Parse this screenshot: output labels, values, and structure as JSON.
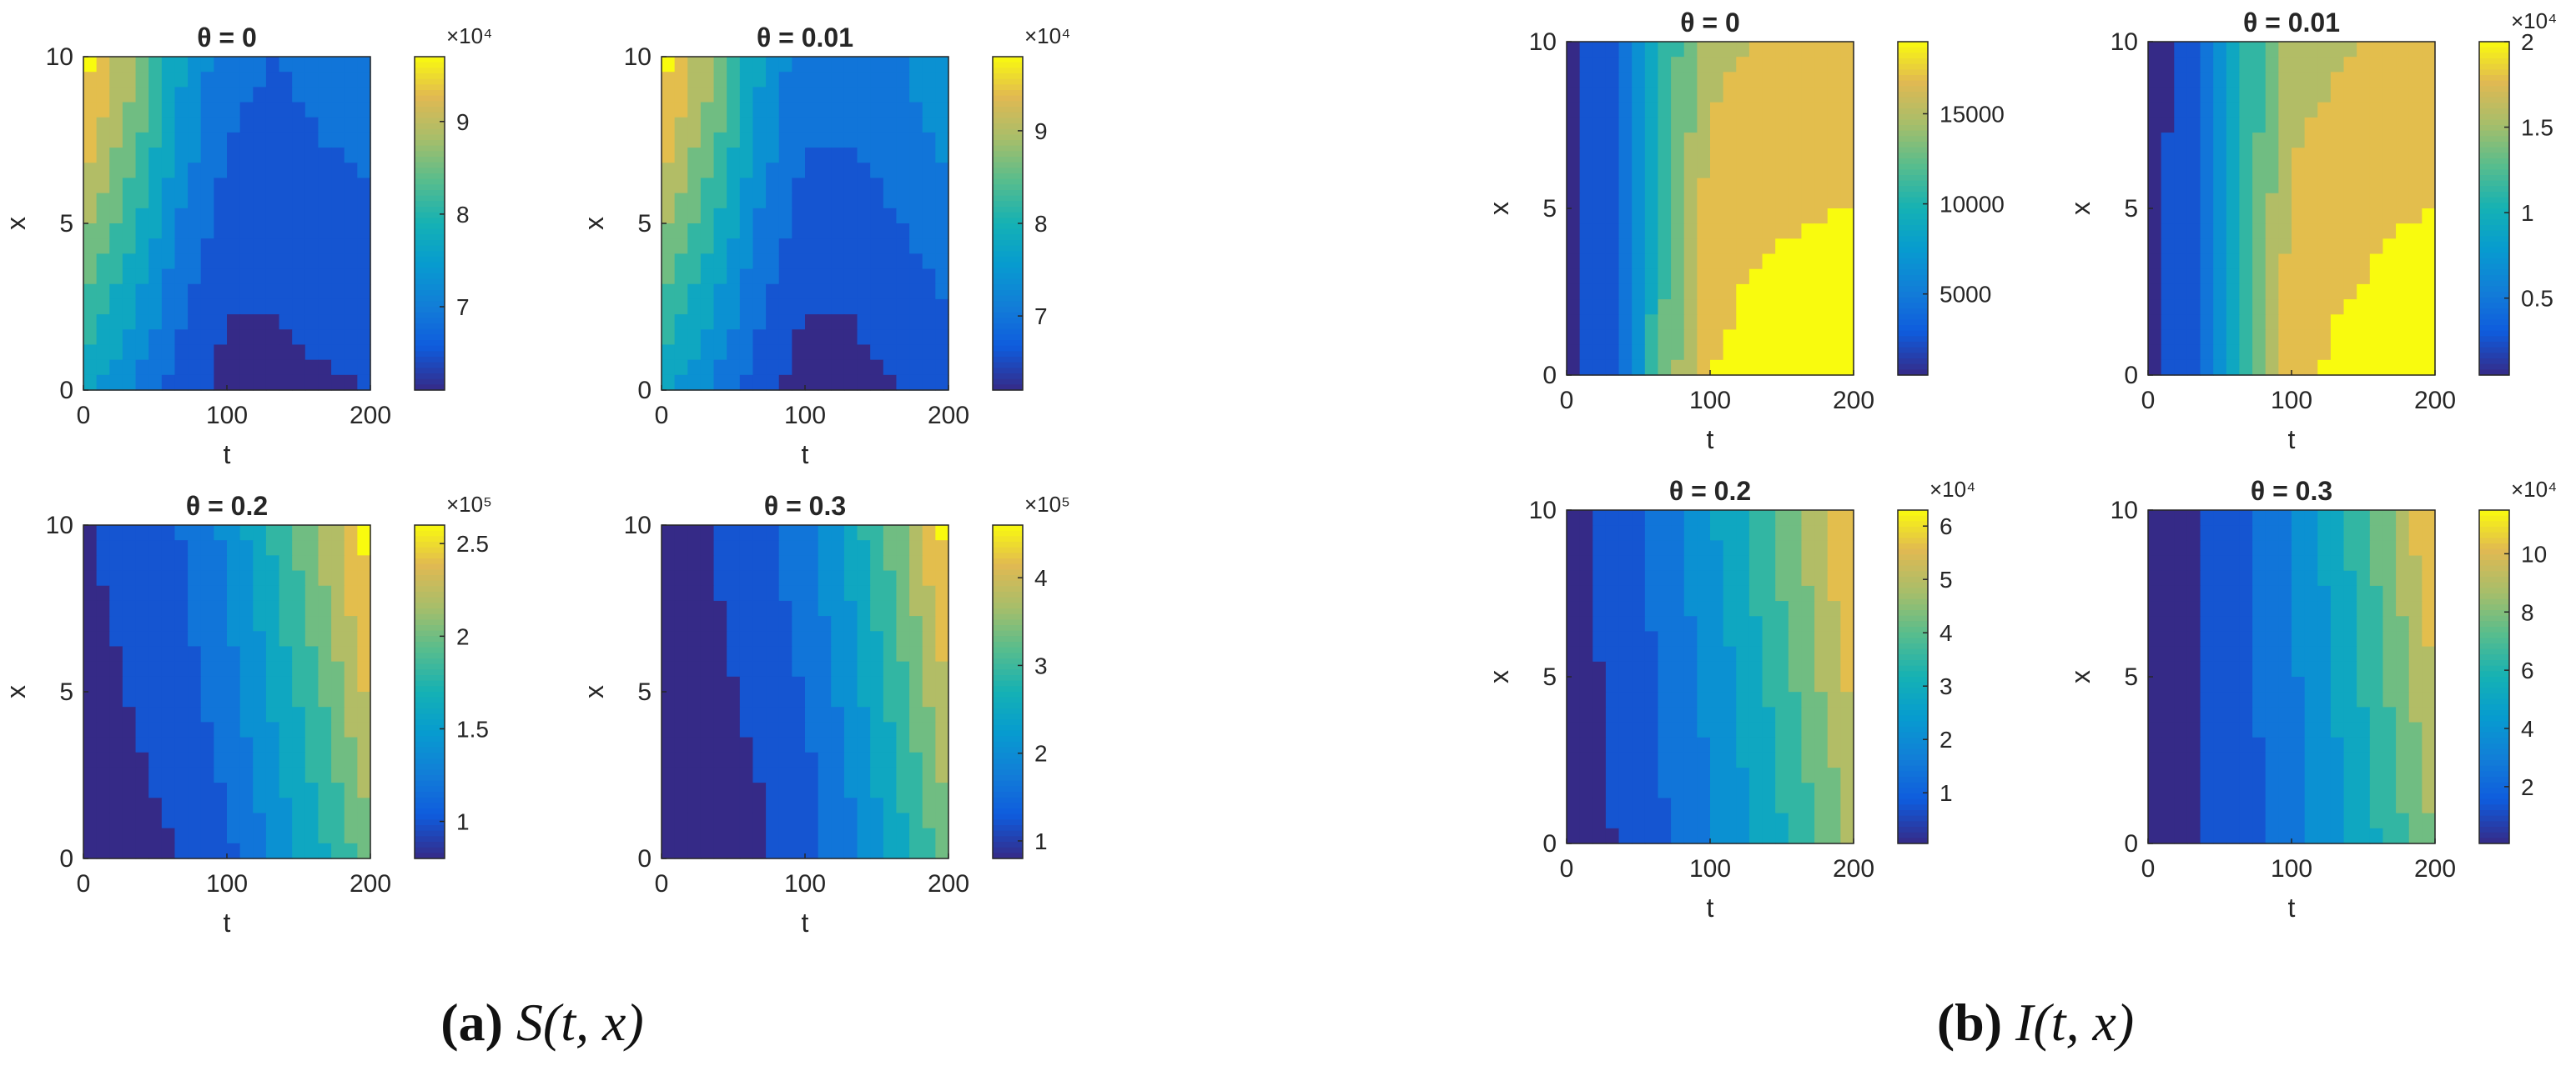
{
  "captions": [
    {
      "letter": "(a)",
      "label": "S(t, x)"
    },
    {
      "letter": "(b)",
      "label": "I(t, x)"
    }
  ],
  "chart_data": [
    {
      "type": "heatmap",
      "title": "θ = 0",
      "xlabel": "t",
      "ylabel": "x",
      "xlim": [
        0,
        200
      ],
      "ylim": [
        0,
        10
      ],
      "xticks": [
        "0",
        "100",
        "200"
      ],
      "yticks": [
        "0",
        "5",
        "10"
      ],
      "colorbar": {
        "range": [
          61000,
          97000
        ],
        "ticks": [
          7,
          8,
          9
        ],
        "tick_labels": [
          "7",
          "8",
          "9"
        ],
        "multiplier": "×10⁴"
      },
      "grid": [
        [
          97000,
          88000,
          76000,
          68000,
          67000,
          68000,
          70000
        ],
        [
          93000,
          85000,
          74000,
          67000,
          66000,
          67000,
          68000
        ],
        [
          88000,
          80000,
          71000,
          65000,
          64000,
          65000,
          66000
        ],
        [
          82000,
          76000,
          68000,
          63000,
          63000,
          64000,
          65000
        ],
        [
          76000,
          71000,
          65000,
          62000,
          62000,
          62500,
          63000
        ]
      ]
    },
    {
      "type": "heatmap",
      "title": "θ = 0.01",
      "xlabel": "t",
      "ylabel": "x",
      "xlim": [
        0,
        200
      ],
      "ylim": [
        0,
        10
      ],
      "xticks": [
        "0",
        "100",
        "200"
      ],
      "yticks": [
        "0",
        "5",
        "10"
      ],
      "colorbar": {
        "range": [
          62000,
          98000
        ],
        "ticks": [
          7,
          8,
          9
        ],
        "tick_labels": [
          "7",
          "8",
          "9"
        ],
        "multiplier": "×10⁴"
      },
      "grid": [
        [
          98000,
          89000,
          77000,
          69000,
          69000,
          72000,
          75000
        ],
        [
          94000,
          86000,
          75000,
          68000,
          68000,
          70000,
          73000
        ],
        [
          89000,
          81000,
          72000,
          66000,
          66000,
          68000,
          70000
        ],
        [
          83000,
          77000,
          69000,
          64000,
          64000,
          66000,
          68000
        ],
        [
          77000,
          72000,
          66000,
          62000,
          63000,
          64000,
          66000
        ]
      ]
    },
    {
      "type": "heatmap",
      "title": "θ = 0.2",
      "xlabel": "t",
      "ylabel": "x",
      "xlim": [
        0,
        200
      ],
      "ylim": [
        0,
        10
      ],
      "xticks": [
        "0",
        "100",
        "200"
      ],
      "yticks": [
        "0",
        "5",
        "10"
      ],
      "colorbar": {
        "range": [
          80000,
          260000
        ],
        "ticks": [
          1,
          1.5,
          2,
          2.5
        ],
        "tick_labels": [
          "1",
          "1.5",
          "2",
          "2.5"
        ],
        "multiplier": "×10⁵"
      },
      "grid": [
        [
          88000,
          99000,
          110000,
          135000,
          175000,
          215000,
          260000
        ],
        [
          85000,
          95000,
          105000,
          128000,
          165000,
          205000,
          250000
        ],
        [
          82000,
          91000,
          100000,
          120000,
          155000,
          190000,
          235000
        ],
        [
          81000,
          86000,
          96000,
          113000,
          145000,
          178000,
          220000
        ],
        [
          80000,
          82000,
          90000,
          105000,
          135000,
          165000,
          205000
        ]
      ]
    },
    {
      "type": "heatmap",
      "title": "θ = 0.3",
      "xlabel": "t",
      "ylabel": "x",
      "xlim": [
        0,
        200
      ],
      "ylim": [
        0,
        10
      ],
      "xticks": [
        "0",
        "100",
        "200"
      ],
      "yticks": [
        "0",
        "5",
        "10"
      ],
      "colorbar": {
        "range": [
          80000,
          460000
        ],
        "ticks": [
          1,
          2,
          3,
          4
        ],
        "tick_labels": [
          "1",
          "2",
          "3",
          "4"
        ],
        "multiplier": "×10⁵"
      },
      "grid": [
        [
          88000,
          102000,
          125000,
          175000,
          250000,
          350000,
          460000
        ],
        [
          85000,
          96000,
          116000,
          160000,
          230000,
          325000,
          430000
        ],
        [
          83000,
          92000,
          108000,
          145000,
          210000,
          300000,
          400000
        ],
        [
          81000,
          88000,
          100000,
          132000,
          192000,
          275000,
          370000
        ],
        [
          80000,
          84000,
          94000,
          120000,
          175000,
          250000,
          340000
        ]
      ]
    },
    {
      "type": "heatmap",
      "title": "θ = 0",
      "xlabel": "t",
      "ylabel": "x",
      "xlim": [
        0,
        200
      ],
      "ylim": [
        0,
        10
      ],
      "xticks": [
        "0",
        "100",
        "200"
      ],
      "yticks": [
        "0",
        "5",
        "10"
      ],
      "colorbar": {
        "range": [
          500,
          19000
        ],
        "ticks": [
          5000,
          10000,
          15000
        ],
        "tick_labels": [
          "5000",
          "10000",
          "15000"
        ],
        "multiplier": ""
      },
      "grid": [
        [
          600,
          3000,
          10000,
          15500,
          16000,
          16500,
          16500
        ],
        [
          600,
          3000,
          10500,
          16000,
          16800,
          17200,
          17500
        ],
        [
          600,
          3200,
          11000,
          17000,
          17500,
          17800,
          18000
        ],
        [
          600,
          3300,
          11500,
          17500,
          18200,
          18600,
          18800
        ],
        [
          600,
          3400,
          12000,
          18000,
          18700,
          19000,
          19000
        ]
      ]
    },
    {
      "type": "heatmap",
      "title": "θ = 0.01",
      "xlabel": "t",
      "ylabel": "x",
      "xlim": [
        0,
        200
      ],
      "ylim": [
        0,
        10
      ],
      "xticks": [
        "0",
        "100",
        "200"
      ],
      "yticks": [
        "0",
        "5",
        "10"
      ],
      "colorbar": {
        "range": [
          500,
          20000
        ],
        "ticks": [
          0.5,
          1,
          1.5,
          2
        ],
        "tick_labels": [
          "0.5",
          "1",
          "1.5",
          "2"
        ],
        "multiplier": "×10⁴"
      },
      "grid": [
        [
          600,
          3000,
          10000,
          16000,
          16500,
          17000,
          17500
        ],
        [
          600,
          3000,
          10500,
          16500,
          17200,
          17800,
          18300
        ],
        [
          600,
          3200,
          11000,
          17300,
          18000,
          18600,
          19000
        ],
        [
          600,
          3300,
          11500,
          17800,
          18800,
          19300,
          19700
        ],
        [
          600,
          3400,
          12000,
          18300,
          19300,
          19800,
          20000
        ]
      ]
    },
    {
      "type": "heatmap",
      "title": "θ = 0.2",
      "xlabel": "t",
      "ylabel": "x",
      "xlim": [
        0,
        200
      ],
      "ylim": [
        0,
        10
      ],
      "xticks": [
        "0",
        "100",
        "200"
      ],
      "yticks": [
        "0",
        "5",
        "10"
      ],
      "colorbar": {
        "range": [
          500,
          63000
        ],
        "ticks": [
          1,
          2,
          3,
          4,
          5,
          6
        ],
        "tick_labels": [
          "1",
          "2",
          "3",
          "4",
          "5",
          "6"
        ],
        "multiplier": "×10⁴"
      },
      "grid": [
        [
          2000,
          6000,
          14000,
          24000,
          35000,
          48000,
          61000
        ],
        [
          1800,
          5500,
          13000,
          22000,
          33000,
          45000,
          58000
        ],
        [
          1600,
          5000,
          12000,
          20000,
          30000,
          42000,
          55000
        ],
        [
          1400,
          4500,
          11000,
          18500,
          28000,
          39000,
          51000
        ],
        [
          1200,
          4000,
          10000,
          17000,
          26000,
          36000,
          48000
        ]
      ]
    },
    {
      "type": "heatmap",
      "title": "θ = 0.3",
      "xlabel": "t",
      "ylabel": "x",
      "xlim": [
        0,
        200
      ],
      "ylim": [
        0,
        10
      ],
      "xticks": [
        "0",
        "100",
        "200"
      ],
      "yticks": [
        "0",
        "5",
        "10"
      ],
      "colorbar": {
        "range": [
          500,
          115000
        ],
        "ticks": [
          2,
          4,
          6,
          8,
          10
        ],
        "tick_labels": [
          "2",
          "4",
          "6",
          "8",
          "10"
        ],
        "multiplier": "×10⁴"
      },
      "grid": [
        [
          2000,
          7000,
          18000,
          34000,
          55000,
          82000,
          112000
        ],
        [
          1800,
          6500,
          17000,
          32000,
          51000,
          76000,
          104000
        ],
        [
          1600,
          6000,
          16000,
          30000,
          48000,
          71000,
          97000
        ],
        [
          1400,
          5500,
          15000,
          28000,
          45000,
          66000,
          90000
        ],
        [
          1200,
          5000,
          14000,
          26000,
          42000,
          61000,
          84000
        ]
      ]
    }
  ]
}
